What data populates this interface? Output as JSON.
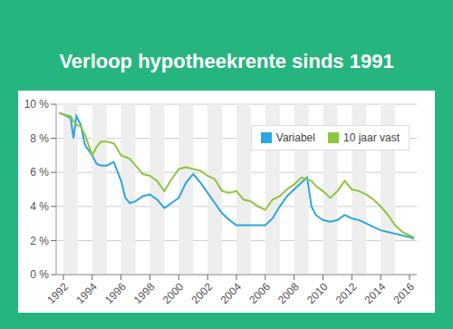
{
  "chart_data": {
    "type": "line",
    "title": "Verloop hypotheekrente sinds 1991",
    "x": [
      1991.7,
      1992,
      1992.5,
      1992.7,
      1992.9,
      1993.2,
      1993.5,
      1994,
      1994.3,
      1994.6,
      1995,
      1995.5,
      1996,
      1996.3,
      1996.6,
      1997,
      1997.5,
      1998,
      1998.5,
      1999,
      1999.5,
      2000,
      2000.5,
      2001,
      2001.5,
      2002,
      2002.5,
      2003,
      2003.5,
      2004,
      2004.5,
      2005,
      2005.5,
      2006,
      2006.5,
      2007,
      2007.5,
      2008,
      2008.5,
      2008.9,
      2009.2,
      2009.5,
      2010,
      2010.5,
      2011,
      2011.5,
      2012,
      2012.5,
      2013,
      2013.5,
      2014,
      2014.5,
      2015,
      2015.5,
      2016,
      2016.3
    ],
    "series": [
      {
        "name": "Variabel",
        "color": "#2ba6de",
        "values": [
          9.5,
          9.4,
          9.2,
          8.0,
          9.3,
          8.8,
          7.6,
          7.0,
          6.5,
          6.4,
          6.4,
          6.6,
          5.5,
          4.5,
          4.2,
          4.3,
          4.6,
          4.7,
          4.4,
          3.9,
          4.2,
          4.5,
          5.4,
          5.9,
          5.4,
          4.8,
          4.2,
          3.6,
          3.2,
          2.9,
          2.9,
          2.9,
          2.9,
          2.9,
          3.3,
          4.0,
          4.6,
          5.0,
          5.4,
          5.7,
          4.0,
          3.5,
          3.2,
          3.1,
          3.2,
          3.5,
          3.3,
          3.2,
          3.0,
          2.8,
          2.6,
          2.5,
          2.4,
          2.3,
          2.2,
          2.1
        ]
      },
      {
        "name": "10 jaar vast",
        "color": "#8dc63f",
        "values": [
          9.5,
          9.4,
          9.3,
          9.0,
          8.8,
          8.7,
          8.2,
          7.0,
          7.5,
          7.8,
          7.8,
          7.7,
          7.0,
          6.9,
          6.8,
          6.4,
          5.9,
          5.8,
          5.5,
          4.9,
          5.6,
          6.2,
          6.3,
          6.2,
          6.1,
          5.8,
          5.6,
          4.9,
          4.8,
          4.9,
          4.4,
          4.3,
          4.0,
          3.8,
          4.4,
          4.6,
          5.0,
          5.3,
          5.7,
          5.6,
          5.5,
          5.2,
          4.9,
          4.5,
          4.9,
          5.5,
          5.0,
          4.9,
          4.7,
          4.4,
          4.0,
          3.5,
          2.9,
          2.5,
          2.3,
          2.2
        ]
      }
    ],
    "xlim": [
      1991.5,
      2016.5
    ],
    "xticks": [
      1992,
      1994,
      1996,
      1998,
      2000,
      2002,
      2004,
      2006,
      2008,
      2010,
      2012,
      2014,
      2016
    ],
    "ylim": [
      0,
      10
    ],
    "yticks": [
      {
        "value": 0,
        "label": "0 %"
      },
      {
        "value": 2,
        "label": "2 %"
      },
      {
        "value": 4,
        "label": "4 %"
      },
      {
        "value": 6,
        "label": "6 %"
      },
      {
        "value": 8,
        "label": "8 %"
      },
      {
        "value": 10,
        "label": "10 %"
      }
    ],
    "grid": true,
    "legend": "upper right"
  }
}
